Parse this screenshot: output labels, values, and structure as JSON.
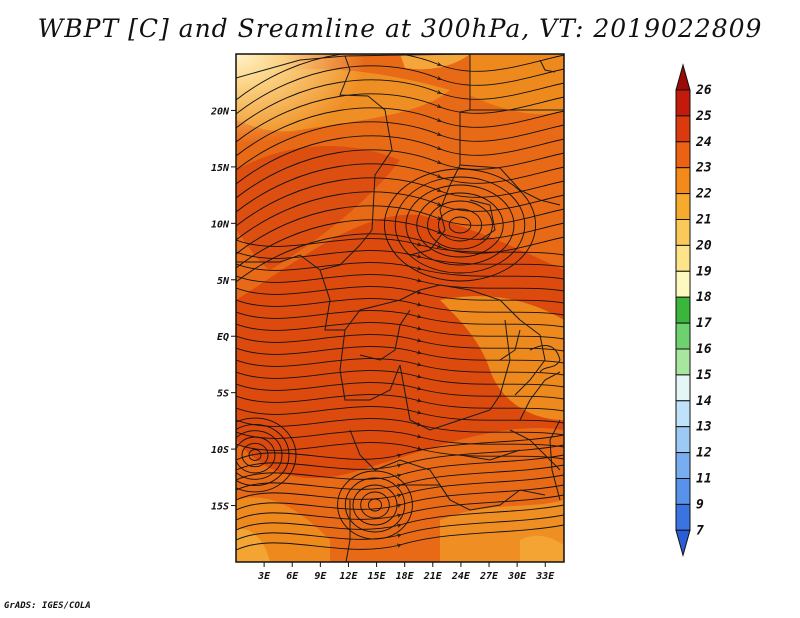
{
  "title": "WBPT [C] and Sreamline at 300hPa, VT: 2019022809",
  "credit": "GrADS: IGES/COLA",
  "map": {
    "lon_range": [
      0,
      35
    ],
    "lat_range": [
      -20,
      25
    ],
    "lat_ticks": [
      {
        "value": 20,
        "label": "20N"
      },
      {
        "value": 15,
        "label": "15N"
      },
      {
        "value": 10,
        "label": "10N"
      },
      {
        "value": 5,
        "label": "5N"
      },
      {
        "value": 0,
        "label": "EQ"
      },
      {
        "value": -5,
        "label": "5S"
      },
      {
        "value": -10,
        "label": "10S"
      },
      {
        "value": -15,
        "label": "15S"
      }
    ],
    "lon_ticks": [
      {
        "value": 3,
        "label": "3E"
      },
      {
        "value": 6,
        "label": "6E"
      },
      {
        "value": 9,
        "label": "9E"
      },
      {
        "value": 12,
        "label": "12E"
      },
      {
        "value": 15,
        "label": "15E"
      },
      {
        "value": 18,
        "label": "18E"
      },
      {
        "value": 21,
        "label": "21E"
      },
      {
        "value": 24,
        "label": "24E"
      },
      {
        "value": 27,
        "label": "27E"
      },
      {
        "value": 30,
        "label": "30E"
      },
      {
        "value": 33,
        "label": "33E"
      }
    ],
    "fill_colors": {
      "cb_19": "#fde89a",
      "cb_20": "#f8c15a",
      "cb_21": "#f3a433",
      "cb_22": "#ee8a1d",
      "cb_23": "#e86c12",
      "cb_24": "#dc4a0d"
    }
  },
  "colorbar": {
    "labels": [
      "26",
      "25",
      "24",
      "23",
      "22",
      "21",
      "20",
      "19",
      "18",
      "17",
      "16",
      "15",
      "14",
      "13",
      "12",
      "11",
      "9",
      "7"
    ],
    "colors": [
      "#9b0a08",
      "#c41a0b",
      "#dc3a0d",
      "#ea6212",
      "#f38a1a",
      "#f7ab2c",
      "#fbc95a",
      "#fde48a",
      "#fdf7c0",
      "#3cb53c",
      "#6fd06f",
      "#a8e6a0",
      "#e4f6f6",
      "#bfe2fa",
      "#9ccaf5",
      "#78aef0",
      "#5892ea",
      "#3b74e0",
      "#2a5ed6"
    ],
    "top_color": "#9b0a08",
    "bottom_color": "#2a5ed6"
  }
}
